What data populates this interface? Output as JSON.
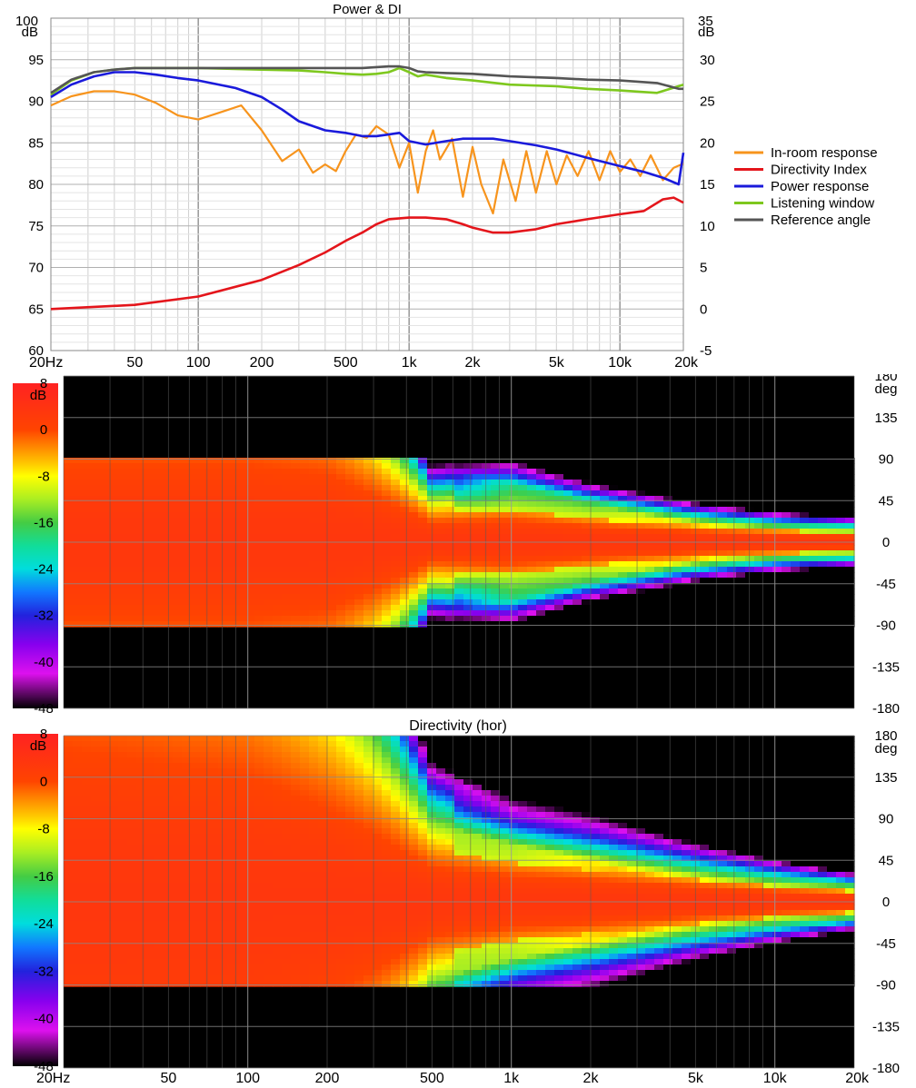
{
  "chart_data": [
    {
      "type": "line",
      "title": "Power & DI",
      "x_scale": "log",
      "xlim": [
        20,
        20000
      ],
      "x_tick_labels": [
        "20Hz",
        "50",
        "100",
        "200",
        "500",
        "1k",
        "2k",
        "5k",
        "10k",
        "20k"
      ],
      "x_tick_values": [
        20,
        50,
        100,
        200,
        500,
        1000,
        2000,
        5000,
        10000,
        20000
      ],
      "y_left": {
        "unit": "dB",
        "lim": [
          60,
          100
        ],
        "ticks": [
          60,
          65,
          70,
          75,
          80,
          85,
          90,
          95,
          100
        ],
        "top_label": "100",
        "unit_label": "dB"
      },
      "y_right": {
        "unit": "dB",
        "lim": [
          -5,
          35
        ],
        "ticks": [
          -5,
          0,
          5,
          10,
          15,
          20,
          25,
          30,
          35
        ],
        "top_label": "35",
        "unit_label": "dB"
      },
      "grid": true,
      "legend_position": "right",
      "series": [
        {
          "name": "In-room response",
          "color": "#f7941d",
          "axis": "left",
          "x": [
            20,
            25,
            32,
            40,
            50,
            63,
            80,
            100,
            125,
            160,
            200,
            250,
            300,
            350,
            400,
            450,
            500,
            560,
            630,
            700,
            800,
            900,
            1000,
            1100,
            1200,
            1300,
            1400,
            1600,
            1800,
            2000,
            2200,
            2500,
            2800,
            3200,
            3600,
            4000,
            4500,
            5000,
            5600,
            6300,
            7100,
            8000,
            9000,
            10000,
            11200,
            12500,
            14000,
            16000,
            18000,
            20000
          ],
          "y": [
            89.5,
            90.6,
            91.2,
            91.2,
            90.8,
            89.8,
            88.3,
            87.8,
            88.6,
            89.5,
            86.5,
            82.8,
            84.2,
            81.4,
            82.4,
            81.6,
            84.0,
            86.0,
            85.6,
            87.0,
            86.0,
            82.0,
            85.0,
            79.0,
            84.0,
            86.5,
            83.0,
            85.5,
            78.5,
            84.5,
            80.0,
            76.5,
            83.0,
            78.0,
            84.0,
            79.0,
            84.0,
            80.0,
            83.5,
            81.0,
            84.0,
            80.5,
            84.0,
            81.5,
            83.0,
            81.0,
            83.5,
            80.5,
            82.0,
            82.5
          ]
        },
        {
          "name": "Directivity Index",
          "color": "#e4151b",
          "axis": "right",
          "x": [
            20,
            50,
            100,
            200,
            300,
            400,
            500,
            600,
            700,
            800,
            1000,
            1200,
            1500,
            1800,
            2000,
            2500,
            3000,
            4000,
            5000,
            7000,
            10000,
            13000,
            16000,
            18000,
            20000
          ],
          "y": [
            0,
            0.5,
            1.5,
            3.5,
            5.3,
            6.8,
            8.2,
            9.2,
            10.2,
            10.8,
            11.0,
            11.0,
            10.8,
            10.2,
            9.8,
            9.2,
            9.2,
            9.6,
            10.2,
            10.8,
            11.4,
            11.8,
            13.2,
            13.4,
            12.8
          ]
        },
        {
          "name": "Power response",
          "color": "#1a1adb",
          "axis": "left",
          "x": [
            20,
            25,
            32,
            40,
            50,
            63,
            80,
            100,
            150,
            200,
            250,
            300,
            400,
            500,
            600,
            700,
            800,
            900,
            1000,
            1200,
            1500,
            1800,
            2000,
            2500,
            3000,
            4000,
            5000,
            7000,
            10000,
            13000,
            16000,
            19000,
            20000
          ],
          "y": [
            90.5,
            92.0,
            93.0,
            93.5,
            93.5,
            93.2,
            92.8,
            92.5,
            91.6,
            90.5,
            89.0,
            87.6,
            86.5,
            86.2,
            85.8,
            85.8,
            86.0,
            86.2,
            85.2,
            84.8,
            85.2,
            85.5,
            85.5,
            85.5,
            85.2,
            84.7,
            84.2,
            83.2,
            82.2,
            81.5,
            80.8,
            80.0,
            83.8
          ]
        },
        {
          "name": "Listening window",
          "color": "#7ec81e",
          "axis": "left",
          "x": [
            20,
            25,
            32,
            40,
            50,
            63,
            80,
            100,
            200,
            300,
            400,
            500,
            600,
            700,
            800,
            900,
            1000,
            1100,
            1200,
            1500,
            2000,
            3000,
            5000,
            7000,
            10000,
            15000,
            20000
          ],
          "y": [
            90.8,
            92.5,
            93.5,
            93.8,
            94.0,
            94.0,
            94.0,
            94.0,
            93.8,
            93.7,
            93.5,
            93.3,
            93.2,
            93.3,
            93.5,
            94.0,
            93.5,
            93.0,
            93.2,
            92.8,
            92.5,
            92.0,
            91.8,
            91.5,
            91.3,
            91.0,
            92.0
          ]
        },
        {
          "name": "Reference angle",
          "color": "#555555",
          "axis": "left",
          "x": [
            20,
            25,
            32,
            40,
            50,
            63,
            80,
            100,
            200,
            400,
            600,
            800,
            900,
            1000,
            1100,
            1200,
            1500,
            2000,
            3000,
            5000,
            7000,
            10000,
            15000,
            19000,
            20000
          ],
          "y": [
            91.0,
            92.6,
            93.5,
            93.8,
            94.0,
            94.0,
            94.0,
            94.0,
            94.0,
            94.0,
            94.0,
            94.2,
            94.2,
            94.0,
            93.6,
            93.5,
            93.4,
            93.3,
            93.0,
            92.8,
            92.6,
            92.5,
            92.2,
            91.5,
            91.5
          ]
        }
      ]
    },
    {
      "type": "heatmap",
      "title": "",
      "x_scale": "log",
      "xlim": [
        20,
        20000
      ],
      "ylim": [
        -180,
        180
      ],
      "y_unit_label": "deg",
      "y_tick_labels": [
        "180",
        "135",
        "90",
        "45",
        "0",
        "-45",
        "-90",
        "-135",
        "-180"
      ],
      "color_scale": {
        "unit_label": "dB",
        "min": -48,
        "max": 8,
        "tick_labels": [
          "8",
          "0",
          "-8",
          "-16",
          "-24",
          "-32",
          "-40",
          "-48"
        ],
        "stops": [
          [
            "#ff2222",
            8
          ],
          [
            "#ff4400",
            0
          ],
          [
            "#ffcc00",
            -6
          ],
          [
            "#ffff00",
            -8
          ],
          [
            "#aaee22",
            -12
          ],
          [
            "#44cc44",
            -16
          ],
          [
            "#11dd99",
            -20
          ],
          [
            "#00dddd",
            -24
          ],
          [
            "#1177ff",
            -28
          ],
          [
            "#2222dd",
            -32
          ],
          [
            "#8800ee",
            -37
          ],
          [
            "#dd11ee",
            -42
          ],
          [
            "#000000",
            -48
          ]
        ]
      },
      "measured_angle_range": [
        -90,
        90
      ],
      "features": [
        {
          "freq": 20,
          "beamwidth_deg": 90
        },
        {
          "freq": 100,
          "beamwidth_deg": 90
        },
        {
          "freq": 200,
          "beamwidth_deg": 80
        },
        {
          "freq": 300,
          "beamwidth_deg": 55
        },
        {
          "freq": 500,
          "beamwidth_deg": 22
        },
        {
          "freq": 1000,
          "beamwidth_deg": 25
        },
        {
          "freq": 2000,
          "beamwidth_deg": 18
        },
        {
          "freq": 5000,
          "beamwidth_deg": 12
        },
        {
          "freq": 10000,
          "beamwidth_deg": 9
        },
        {
          "freq": 20000,
          "beamwidth_deg": 7
        }
      ]
    },
    {
      "type": "heatmap",
      "title": "Directivity (hor)",
      "x_scale": "log",
      "xlim": [
        20,
        20000
      ],
      "x_tick_labels": [
        "20Hz",
        "50",
        "100",
        "200",
        "500",
        "1k",
        "2k",
        "5k",
        "10k",
        "20k"
      ],
      "x_tick_values": [
        20,
        50,
        100,
        200,
        500,
        1000,
        2000,
        5000,
        10000,
        20000
      ],
      "ylim": [
        -180,
        180
      ],
      "y_unit_label": "deg",
      "y_tick_labels": [
        "180",
        "135",
        "90",
        "45",
        "0",
        "-45",
        "-90",
        "-135",
        "-180"
      ],
      "color_scale": {
        "unit_label": "dB",
        "min": -48,
        "max": 8,
        "tick_labels": [
          "8",
          "0",
          "-8",
          "-16",
          "-24",
          "-32",
          "-40",
          "-48"
        ]
      },
      "measured_angle_range": [
        -90,
        180
      ],
      "features": [
        {
          "freq": 20,
          "beamwidth_deg": 180
        },
        {
          "freq": 100,
          "beamwidth_deg": 150
        },
        {
          "freq": 200,
          "beamwidth_deg": 110
        },
        {
          "freq": 300,
          "beamwidth_deg": 80
        },
        {
          "freq": 500,
          "beamwidth_deg": 40
        },
        {
          "freq": 1000,
          "beamwidth_deg": 30
        },
        {
          "freq": 2000,
          "beamwidth_deg": 25
        },
        {
          "freq": 5000,
          "beamwidth_deg": 17
        },
        {
          "freq": 10000,
          "beamwidth_deg": 12
        },
        {
          "freq": 20000,
          "beamwidth_deg": 8
        }
      ]
    }
  ]
}
